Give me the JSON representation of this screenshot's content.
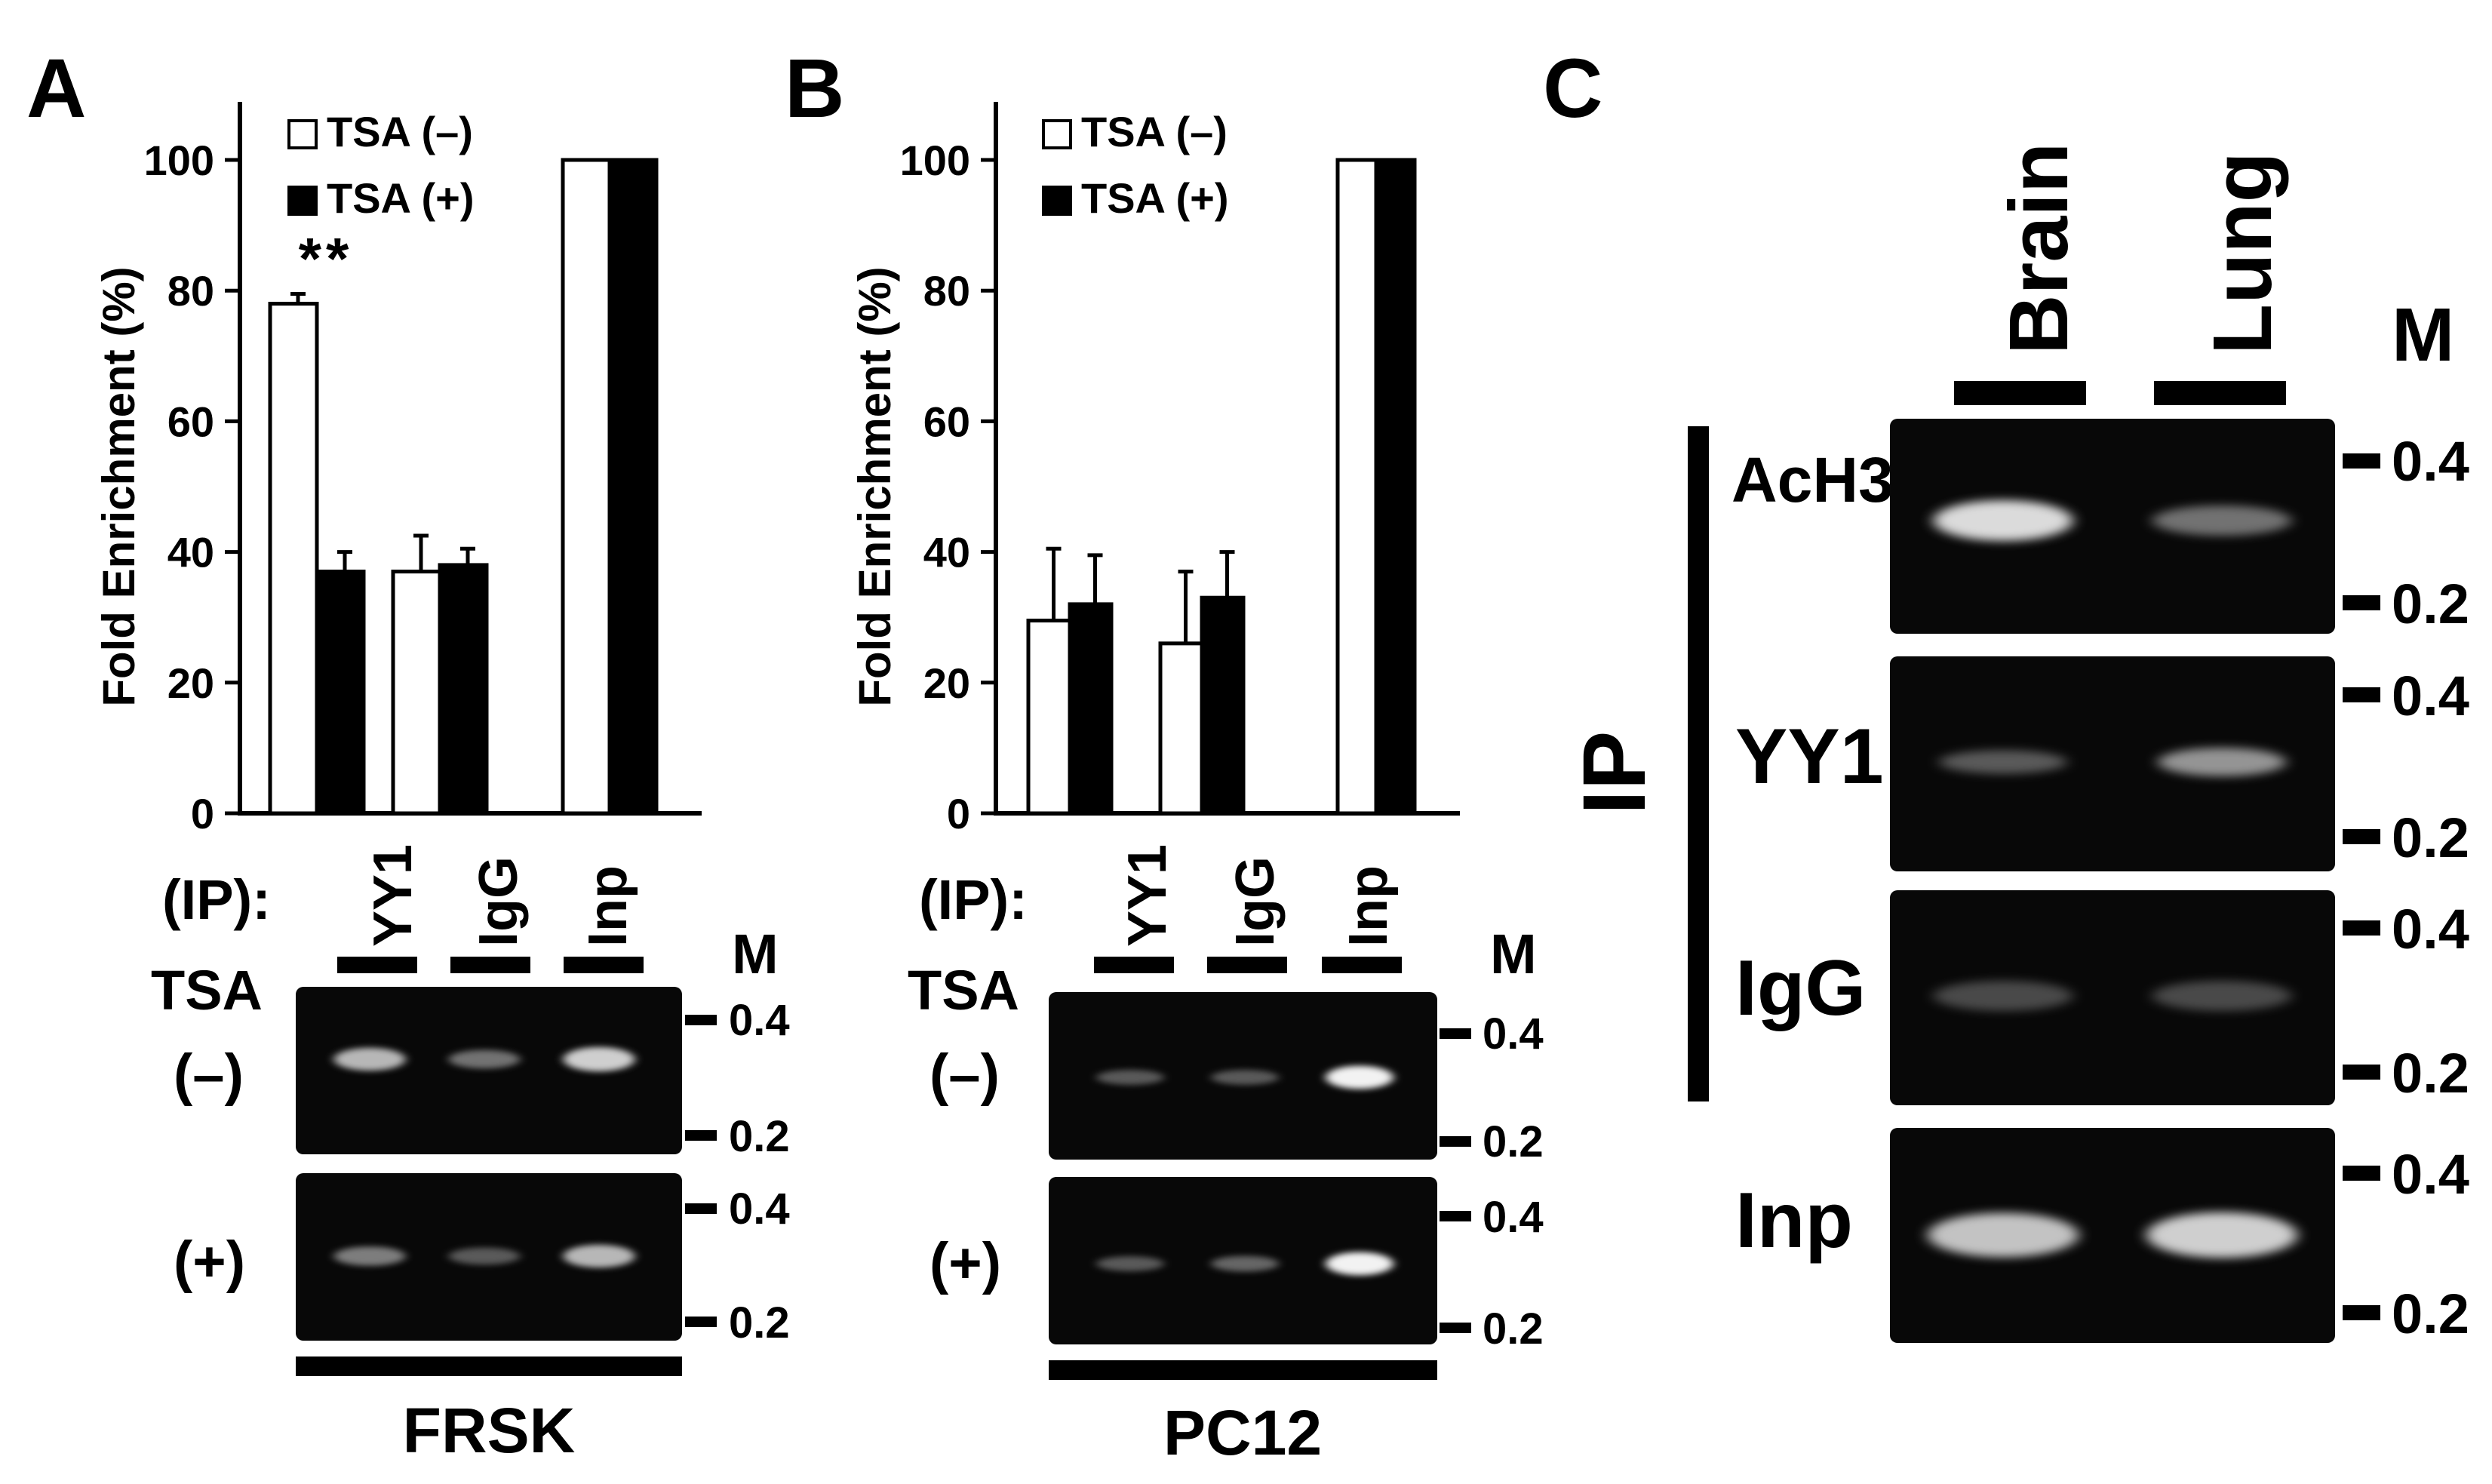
{
  "colors": {
    "open_bar": "#ffffff",
    "filled_bar": "#000000",
    "gel_bg": "#080808",
    "band": "#f2f2f2"
  },
  "shared": {
    "ylabel": "Fold Enrichment (%)",
    "y_ticks": [
      "0",
      "20",
      "40",
      "60",
      "80",
      "100"
    ],
    "legend": [
      "TSA (–)",
      "TSA (+)"
    ],
    "ip_label": "(IP):",
    "categories": [
      "YY1",
      "IgG",
      "Inp"
    ],
    "tsa_label": "TSA",
    "conditions": [
      "(–)",
      "(+)"
    ],
    "marker_label": "M",
    "marker_sizes": [
      "0.4",
      "0.2"
    ]
  },
  "panels": {
    "A": {
      "letter": "A",
      "cell_line": "FRSK",
      "significance": "**"
    },
    "B": {
      "letter": "B",
      "cell_line": "PC12"
    },
    "C": {
      "letter": "C",
      "tissues": [
        "Brain",
        "Lung"
      ],
      "marker_label": "M",
      "ip_label": "IP",
      "rows": [
        "AcH3",
        "YY1",
        "IgG",
        "Inp"
      ],
      "marker_sizes": [
        "0.4",
        "0.2"
      ]
    }
  },
  "chart_data": [
    {
      "type": "bar",
      "panel": "A",
      "ylabel": "Fold Enrichment (%)",
      "ylim": [
        0,
        100
      ],
      "y_ticks": [
        0,
        20,
        40,
        60,
        80,
        100
      ],
      "categories": [
        "YY1",
        "IgG",
        "Inp"
      ],
      "series": [
        {
          "name": "TSA (–)",
          "values": [
            78,
            37,
            100
          ],
          "errors": [
            1.5,
            5.5,
            0
          ]
        },
        {
          "name": "TSA (+)",
          "values": [
            37,
            38,
            100
          ],
          "errors": [
            3,
            2.5,
            0
          ]
        }
      ],
      "annotation": "**"
    },
    {
      "type": "bar",
      "panel": "B",
      "ylabel": "Fold Enrichment (%)",
      "ylim": [
        0,
        100
      ],
      "y_ticks": [
        0,
        20,
        40,
        60,
        80,
        100
      ],
      "categories": [
        "YY1",
        "IgG",
        "Inp"
      ],
      "series": [
        {
          "name": "TSA (–)",
          "values": [
            29.5,
            26,
            100
          ],
          "errors": [
            11,
            11,
            0
          ]
        },
        {
          "name": "TSA (+)",
          "values": [
            32,
            33,
            100
          ],
          "errors": [
            7.5,
            7,
            0
          ]
        }
      ]
    }
  ],
  "gels": {
    "A": {
      "minus": [
        0.75,
        0.45,
        0.85
      ],
      "plus": [
        0.5,
        0.35,
        0.75
      ]
    },
    "B": {
      "minus": [
        0.35,
        0.35,
        1.0
      ],
      "plus": [
        0.35,
        0.4,
        1.0
      ]
    },
    "C": {
      "AcH3": [
        0.9,
        0.45
      ],
      "YY1": [
        0.35,
        0.6
      ],
      "IgG": [
        0.28,
        0.28
      ],
      "Inp": [
        0.8,
        0.85
      ]
    }
  }
}
